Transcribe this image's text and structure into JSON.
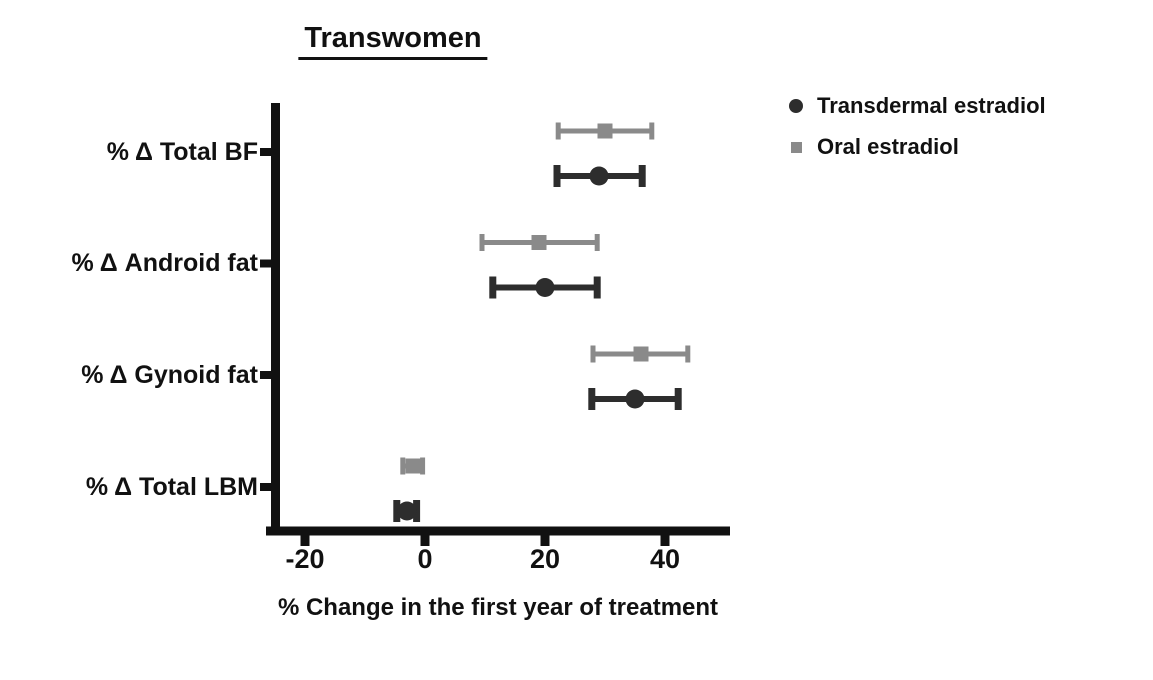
{
  "chart_data": {
    "type": "scatter",
    "subtype": "dot-plot-with-error-bars",
    "title": "Transwomen",
    "xlabel": "% Change in the first year of treatment",
    "categories": [
      "% Δ Total BF",
      "% Δ Android fat",
      "% Δ Gynoid fat",
      "% Δ Total LBM"
    ],
    "x_ticks": [
      -20,
      0,
      20,
      40
    ],
    "xlim": [
      -26.5,
      51
    ],
    "grid": false,
    "legend_position": "top-right",
    "axis_color": "#111111",
    "series": [
      {
        "name": "Transdermal estradiol",
        "marker": "circle",
        "color": "#2d2d2d",
        "means": [
          29,
          20,
          35,
          -3
        ],
        "ci_low": [
          22,
          11.3,
          27.8,
          -4.7
        ],
        "ci_high": [
          36.2,
          28.7,
          42.2,
          -1.4
        ]
      },
      {
        "name": "Oral estradiol",
        "marker": "square",
        "color": "#8a8a8a",
        "means": [
          30,
          19,
          36,
          -2
        ],
        "ci_low": [
          22.2,
          9.5,
          28,
          -3.7
        ],
        "ci_high": [
          37.8,
          28.7,
          43.8,
          -0.4
        ]
      }
    ]
  }
}
